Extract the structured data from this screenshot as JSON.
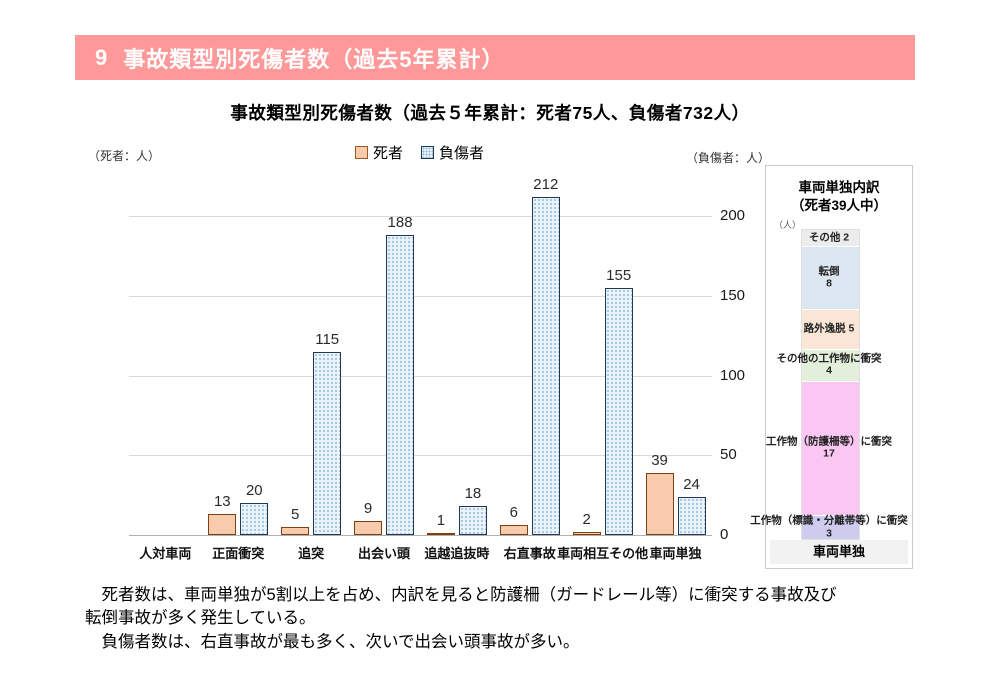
{
  "header": {
    "number": "9",
    "title": "事故類型別死傷者数（過去5年累計）",
    "bg_color": "#FF9999"
  },
  "chart": {
    "title": "事故類型別死傷者数（過去５年累計：死者75人、負傷者732人）",
    "left_axis_unit": "（死者：人）",
    "right_axis_unit": "（負傷者：人）",
    "legend": {
      "deaths": "死者",
      "injuries": "負傷者"
    }
  },
  "chart_data": [
    {
      "type": "bar",
      "title": "事故類型別死傷者数（過去５年累計：死者75人、負傷者732人）",
      "categories": [
        "人対車両",
        "正面衝突",
        "追突",
        "出会い頭",
        "追越追抜時",
        "右直事故",
        "車両相互その他",
        "車両単独"
      ],
      "series": [
        {
          "name": "死者",
          "values": [
            0,
            13,
            5,
            9,
            1,
            6,
            2,
            39
          ],
          "fill": "#F8CBAD",
          "border": "#7F3F10"
        },
        {
          "name": "負傷者",
          "values": [
            0,
            20,
            115,
            188,
            18,
            212,
            155,
            24
          ],
          "fill": "#EAF3FA",
          "border": "#22384E",
          "pattern": "dots",
          "dot_color": "#8FB9DC"
        }
      ],
      "y_axis": {
        "side": "right",
        "ticks": [
          0,
          50,
          100,
          150,
          200
        ],
        "max": 225
      },
      "grid": true,
      "legend_position": "top",
      "data_labels_shown_for_nonzero": true
    },
    {
      "type": "stacked-bar",
      "title": "車両単独内訳（死者39人中）",
      "unit_label": "（人）",
      "total": 39,
      "x_label": "車両単独",
      "segments_top_to_bottom": [
        {
          "label": "その他",
          "value": 2,
          "color": "#ECECEC",
          "label_layout": "inline"
        },
        {
          "label": "転倒",
          "value": 8,
          "color": "#DCE6F1",
          "label_layout": "stacked"
        },
        {
          "label": "路外逸脱",
          "value": 5,
          "color": "#FBE5D6",
          "label_layout": "inline"
        },
        {
          "label": "その他の工作物に衝突",
          "value": 4,
          "color": "#E2EFDA",
          "label_layout": "stacked"
        },
        {
          "label": "工作物（防護柵等）に衝突",
          "value": 17,
          "color": "#FAC7F3",
          "label_layout": "stacked"
        },
        {
          "label": "工作物（標識・分離帯等）に衝突",
          "value": 3,
          "color": "#CDCCEF",
          "label_layout": "stacked"
        }
      ]
    }
  ],
  "panel": {
    "title_line1": "車両単独内訳",
    "title_line2": "（死者39人中）",
    "unit_label": "（人）",
    "x_label": "車両単独"
  },
  "notes": {
    "line1": "　死者数は、車両単独が5割以上を占め、内訳を見ると防護柵（ガードレール等）に衝突する事故及び",
    "line2": "転倒事故が多く発生している。",
    "line3": "　負傷者数は、右直事故が最も多く、次いで出会い頭事故が多い。"
  }
}
